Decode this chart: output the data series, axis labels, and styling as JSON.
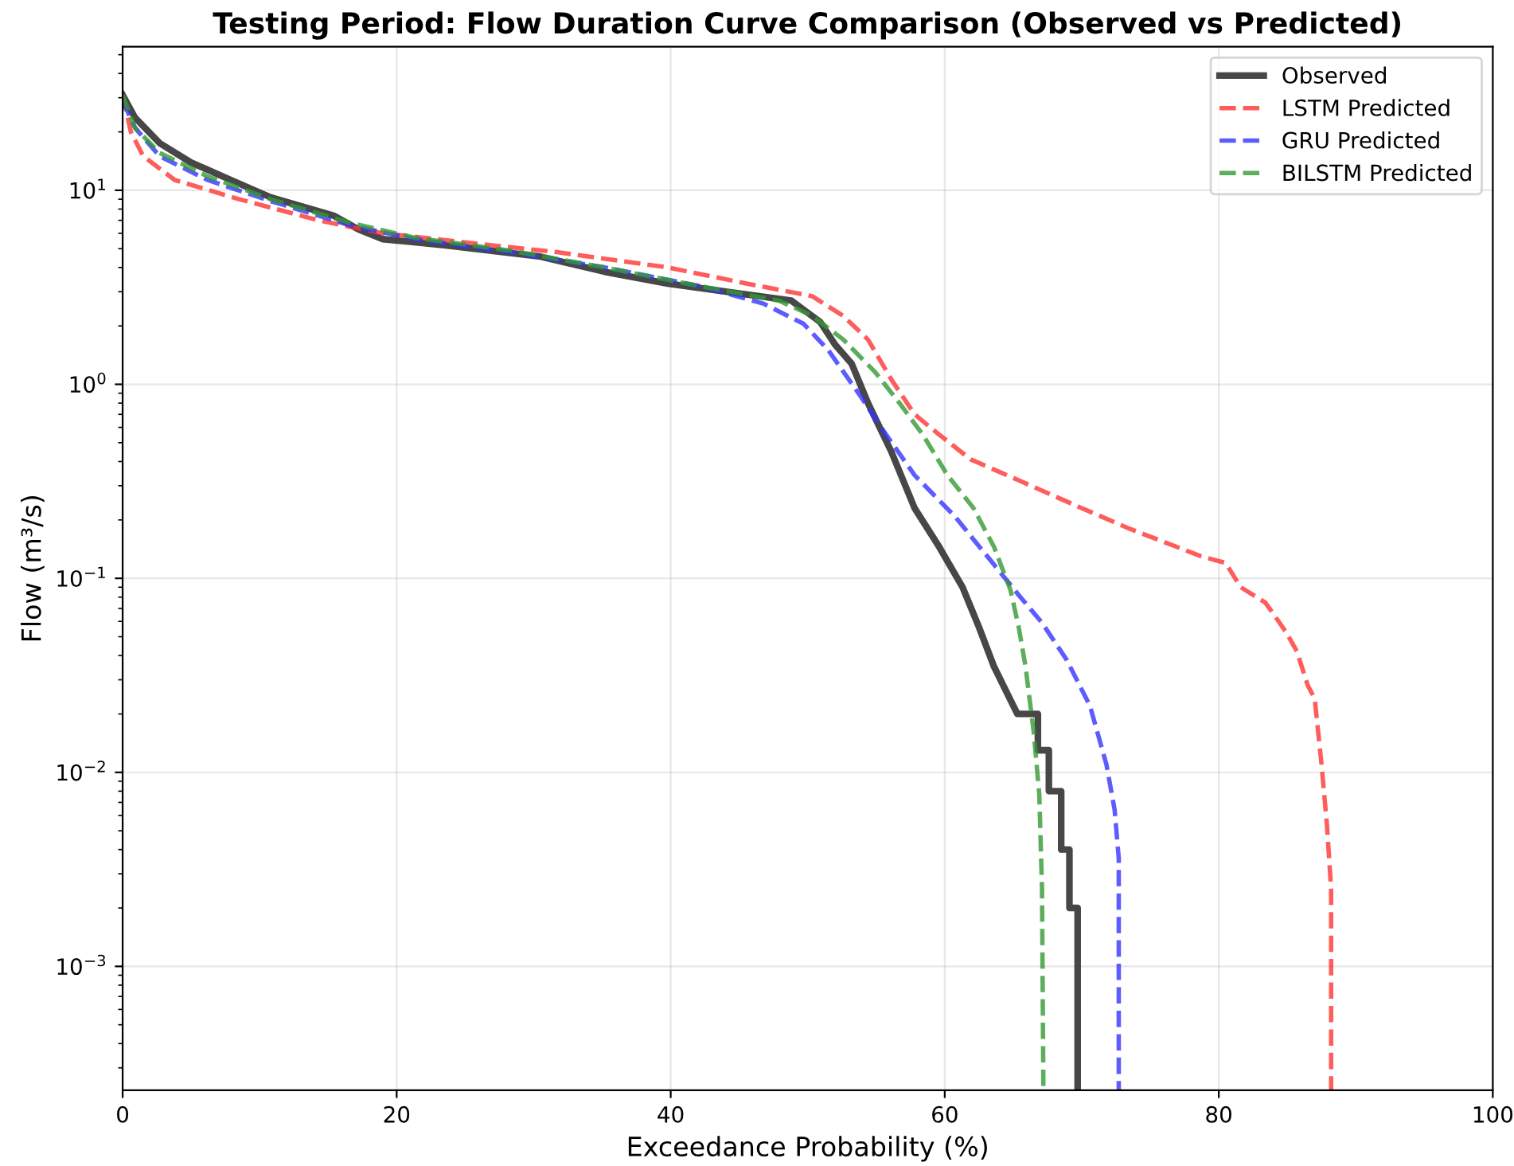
{
  "chart_data": {
    "type": "line",
    "title": "Testing Period: Flow Duration Curve Comparison (Observed vs Predicted)",
    "xlabel": "Exceedance Probability (%)",
    "ylabel": "Flow (m³/s)",
    "log": "y",
    "grid": true,
    "legend": "top right",
    "xlim": [
      0,
      100
    ],
    "xticks": [
      0,
      20,
      40,
      60,
      80,
      100
    ],
    "ylim": [
      0.00023,
      55
    ],
    "yticks": [
      {
        "value": 0.001,
        "label": "10$^{−3}$"
      },
      {
        "value": 0.01,
        "label": "10$^{−2}$"
      },
      {
        "value": 0.1,
        "label": "10$^{−1}$"
      },
      {
        "value": 1,
        "label": "10$^{0}$"
      },
      {
        "value": 10,
        "label": "10$^{1}$"
      }
    ],
    "series": [
      {
        "name": "Observed",
        "type": "line",
        "color": "#333333",
        "line_style": "solid",
        "x": [
          0,
          0.9,
          2.7,
          5,
          7.9,
          10.8,
          15.4,
          17.2,
          19,
          23.6,
          30.5,
          35.2,
          39.8,
          45.6,
          48.8,
          50.9,
          52,
          53.2,
          54.4,
          56.1,
          57.8,
          59.6,
          61.3,
          62.5,
          63.6,
          65.3,
          66.8,
          66.8,
          67.6,
          67.6,
          68.5,
          68.5,
          69.1,
          69.1,
          69.7,
          69.7
        ],
        "values": [
          31,
          23.7,
          17.5,
          13.9,
          11.3,
          9.2,
          7.4,
          6.3,
          5.6,
          5.2,
          4.55,
          3.8,
          3.3,
          2.9,
          2.7,
          2.1,
          1.6,
          1.28,
          0.8,
          0.45,
          0.23,
          0.145,
          0.09,
          0.056,
          0.035,
          0.02,
          0.02,
          0.013,
          0.013,
          0.008,
          0.008,
          0.004,
          0.004,
          0.002,
          0.002,
          0.00023
        ]
      },
      {
        "name": "LSTM Predicted",
        "color": "#ff3333",
        "line_style": "dashed",
        "x": [
          0,
          0.6,
          1.5,
          3.8,
          8.5,
          14.3,
          19,
          25.9,
          31.7,
          39.8,
          45.6,
          50.3,
          52.6,
          54.4,
          56.1,
          57.8,
          59.6,
          61.9,
          65.4,
          70,
          73.5,
          78.7,
          80.5,
          81.6,
          83.4,
          84.9,
          85.7,
          86.5,
          87,
          87.5,
          87.9,
          88.2,
          88.2
        ],
        "values": [
          31,
          20,
          15,
          11.3,
          9,
          7,
          6,
          5.3,
          4.8,
          4,
          3.3,
          2.85,
          2.25,
          1.7,
          1.06,
          0.7,
          0.55,
          0.41,
          0.32,
          0.23,
          0.18,
          0.13,
          0.12,
          0.09,
          0.075,
          0.053,
          0.042,
          0.028,
          0.024,
          0.011,
          0.0053,
          0.0025,
          0.00023
        ]
      },
      {
        "name": "GRU Predicted",
        "color": "#3333ff",
        "line_style": "dashed",
        "x": [
          0,
          0.9,
          2.7,
          6.2,
          10.8,
          16.6,
          21.3,
          28.2,
          35.2,
          42.2,
          46.8,
          49.7,
          51.5,
          53.8,
          55.5,
          57.8,
          60.7,
          63.1,
          65.4,
          67.1,
          68.9,
          70.6,
          71.8,
          72.4,
          72.7,
          72.7
        ],
        "values": [
          29,
          21,
          15,
          11.3,
          8.8,
          6.6,
          5.6,
          4.8,
          4,
          3.2,
          2.6,
          2.05,
          1.5,
          0.88,
          0.58,
          0.34,
          0.21,
          0.13,
          0.082,
          0.059,
          0.038,
          0.022,
          0.011,
          0.0064,
          0.0036,
          0.00023
        ]
      },
      {
        "name": "BILSTM Predicted",
        "color": "#339933",
        "line_style": "dashed",
        "x": [
          0,
          0.9,
          2.7,
          6.2,
          10.8,
          16.6,
          21.3,
          28.2,
          35.2,
          42.2,
          47.9,
          50.3,
          52.6,
          54.9,
          56.7,
          58.4,
          60.2,
          62.1,
          63.6,
          64.8,
          65.4,
          65.9,
          66.5,
          66.9,
          67.1,
          67.2
        ],
        "values": [
          31,
          21,
          15.6,
          11.8,
          9,
          6.8,
          5.7,
          4.9,
          4,
          3.2,
          2.7,
          2.26,
          1.7,
          1.16,
          0.8,
          0.55,
          0.34,
          0.23,
          0.145,
          0.087,
          0.056,
          0.035,
          0.016,
          0.0077,
          0.0025,
          0.00023
        ]
      }
    ]
  }
}
